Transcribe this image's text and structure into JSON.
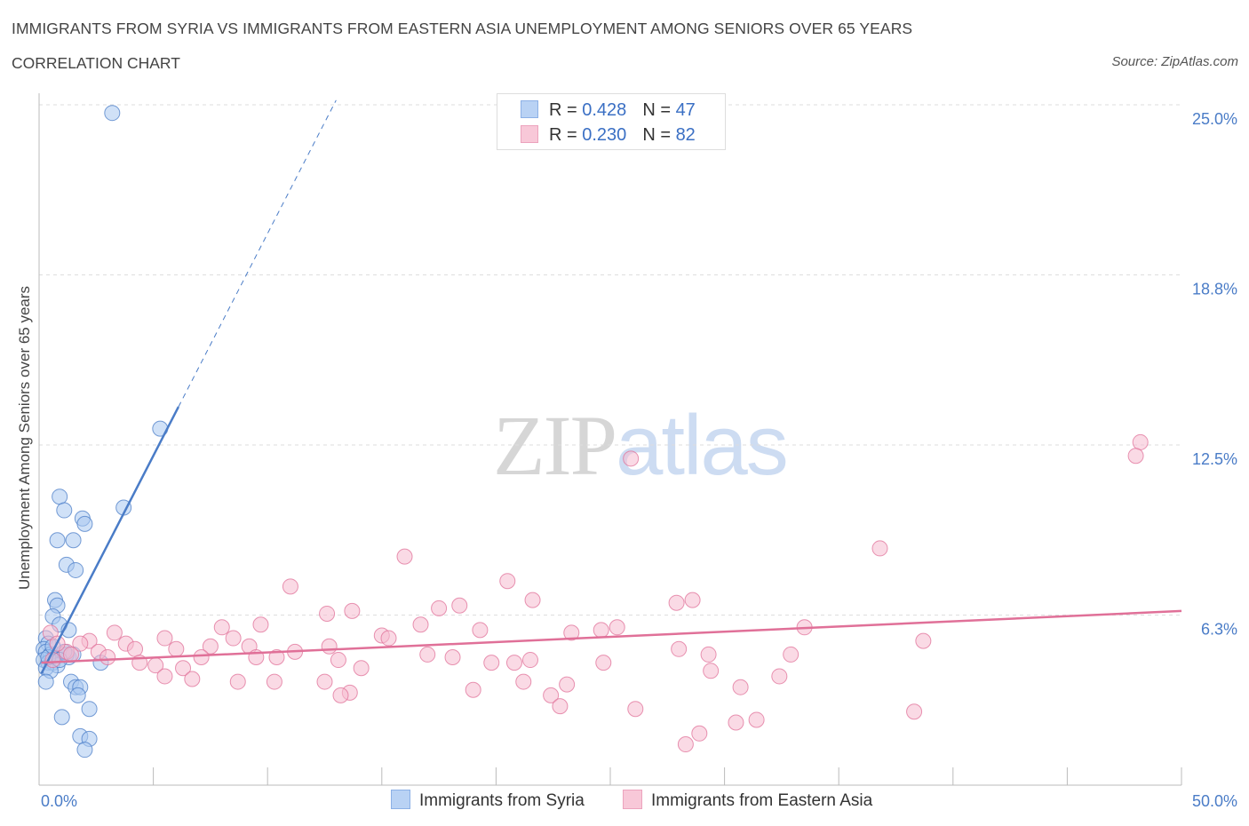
{
  "chart_data": {
    "type": "scatter",
    "title": "IMMIGRANTS FROM SYRIA VS IMMIGRANTS FROM EASTERN ASIA UNEMPLOYMENT AMONG SENIORS OVER 65 YEARS",
    "subtitle": "CORRELATION CHART",
    "source": "Source: ZipAtlas.com",
    "ylabel": "Unemployment Among Seniors over 65 years",
    "xlim": [
      0,
      50
    ],
    "ylim": [
      0,
      25
    ],
    "y_ticks": [
      {
        "value": 25.0,
        "label": "25.0%"
      },
      {
        "value": 18.75,
        "label": "18.8%"
      },
      {
        "value": 12.5,
        "label": "12.5%"
      },
      {
        "value": 6.25,
        "label": "6.3%"
      }
    ],
    "x_tick_labels": {
      "min": "0.0%",
      "max": "50.0%"
    },
    "grid": true,
    "colors": {
      "syria": "#4a7cc7",
      "syria_fill": "#aac8f0",
      "asia": "#e07098",
      "asia_fill": "#f5bcd0"
    },
    "legend": [
      {
        "key": "syria",
        "r_label": "R =",
        "r_value": "0.428",
        "n_label": "N =",
        "n_value": "47"
      },
      {
        "key": "asia",
        "r_label": "R =",
        "r_value": "0.230",
        "n_label": "N =",
        "n_value": "82"
      }
    ],
    "series": [
      {
        "name": "Immigrants from Syria",
        "key": "syria",
        "trend": {
          "x0": 0.1,
          "y0": 4.1,
          "x1": 6.1,
          "y1": 13.9,
          "dash_to_x": 13.0
        },
        "points": [
          [
            3.2,
            24.7
          ],
          [
            5.3,
            13.1
          ],
          [
            3.7,
            10.2
          ],
          [
            0.9,
            10.6
          ],
          [
            1.1,
            10.1
          ],
          [
            1.9,
            9.8
          ],
          [
            2.0,
            9.6
          ],
          [
            0.8,
            9.0
          ],
          [
            1.5,
            9.0
          ],
          [
            1.2,
            8.1
          ],
          [
            1.6,
            7.9
          ],
          [
            0.7,
            6.8
          ],
          [
            0.8,
            6.6
          ],
          [
            0.6,
            6.2
          ],
          [
            0.9,
            5.9
          ],
          [
            1.3,
            5.7
          ],
          [
            0.3,
            5.4
          ],
          [
            0.4,
            5.2
          ],
          [
            0.2,
            5.0
          ],
          [
            0.3,
            4.9
          ],
          [
            0.5,
            4.8
          ],
          [
            0.7,
            4.8
          ],
          [
            1.0,
            4.8
          ],
          [
            1.3,
            4.7
          ],
          [
            0.2,
            4.6
          ],
          [
            0.4,
            4.5
          ],
          [
            0.6,
            4.5
          ],
          [
            0.8,
            4.4
          ],
          [
            0.3,
            4.3
          ],
          [
            1.2,
            4.8
          ],
          [
            1.5,
            4.8
          ],
          [
            2.7,
            4.5
          ],
          [
            0.5,
            4.2
          ],
          [
            1.4,
            3.8
          ],
          [
            1.6,
            3.6
          ],
          [
            1.8,
            3.6
          ],
          [
            1.7,
            3.3
          ],
          [
            0.3,
            3.8
          ],
          [
            2.2,
            2.8
          ],
          [
            1.0,
            2.5
          ],
          [
            1.8,
            1.8
          ],
          [
            2.2,
            1.7
          ],
          [
            2.0,
            1.3
          ],
          [
            1.1,
            4.9
          ],
          [
            0.4,
            4.7
          ],
          [
            0.9,
            4.6
          ],
          [
            0.6,
            5.1
          ]
        ]
      },
      {
        "name": "Immigrants from Eastern Asia",
        "key": "asia",
        "trend": {
          "x0": 0.1,
          "y0": 4.5,
          "x1": 50.0,
          "y1": 6.4
        },
        "points": [
          [
            48.2,
            12.6
          ],
          [
            48.0,
            12.1
          ],
          [
            25.9,
            12.0
          ],
          [
            36.8,
            8.7
          ],
          [
            16.0,
            8.4
          ],
          [
            20.5,
            7.5
          ],
          [
            11.0,
            7.3
          ],
          [
            21.6,
            6.8
          ],
          [
            27.9,
            6.7
          ],
          [
            28.6,
            6.8
          ],
          [
            17.5,
            6.5
          ],
          [
            18.4,
            6.6
          ],
          [
            13.7,
            6.4
          ],
          [
            12.6,
            6.3
          ],
          [
            8.0,
            5.8
          ],
          [
            9.7,
            5.9
          ],
          [
            16.7,
            5.9
          ],
          [
            19.3,
            5.7
          ],
          [
            23.3,
            5.6
          ],
          [
            24.6,
            5.7
          ],
          [
            25.3,
            5.8
          ],
          [
            33.5,
            5.8
          ],
          [
            3.3,
            5.6
          ],
          [
            5.5,
            5.4
          ],
          [
            8.5,
            5.4
          ],
          [
            15.0,
            5.5
          ],
          [
            15.3,
            5.4
          ],
          [
            38.7,
            5.3
          ],
          [
            2.2,
            5.3
          ],
          [
            1.8,
            5.2
          ],
          [
            3.8,
            5.2
          ],
          [
            4.2,
            5.0
          ],
          [
            6.0,
            5.0
          ],
          [
            7.5,
            5.1
          ],
          [
            9.2,
            5.1
          ],
          [
            11.2,
            4.9
          ],
          [
            12.7,
            5.1
          ],
          [
            17.0,
            4.8
          ],
          [
            18.1,
            4.7
          ],
          [
            21.5,
            4.6
          ],
          [
            28.0,
            5.0
          ],
          [
            29.3,
            4.8
          ],
          [
            32.9,
            4.8
          ],
          [
            1.2,
            4.9
          ],
          [
            2.6,
            4.9
          ],
          [
            3.0,
            4.7
          ],
          [
            4.4,
            4.5
          ],
          [
            5.1,
            4.4
          ],
          [
            6.3,
            4.3
          ],
          [
            7.1,
            4.7
          ],
          [
            9.5,
            4.7
          ],
          [
            10.4,
            4.7
          ],
          [
            13.1,
            4.6
          ],
          [
            14.1,
            4.3
          ],
          [
            19.8,
            4.5
          ],
          [
            20.8,
            4.5
          ],
          [
            24.7,
            4.5
          ],
          [
            29.4,
            4.2
          ],
          [
            32.4,
            4.0
          ],
          [
            5.5,
            4.0
          ],
          [
            6.7,
            3.9
          ],
          [
            8.7,
            3.8
          ],
          [
            10.3,
            3.8
          ],
          [
            12.5,
            3.8
          ],
          [
            13.6,
            3.4
          ],
          [
            13.2,
            3.3
          ],
          [
            19.0,
            3.5
          ],
          [
            21.2,
            3.8
          ],
          [
            22.4,
            3.3
          ],
          [
            23.1,
            3.7
          ],
          [
            30.7,
            3.6
          ],
          [
            22.8,
            2.9
          ],
          [
            26.1,
            2.8
          ],
          [
            31.4,
            2.4
          ],
          [
            30.5,
            2.3
          ],
          [
            38.3,
            2.7
          ],
          [
            28.9,
            1.9
          ],
          [
            28.3,
            1.5
          ],
          [
            0.5,
            5.6
          ],
          [
            0.8,
            5.2
          ],
          [
            1.4,
            4.8
          ],
          [
            0.6,
            4.6
          ]
        ]
      }
    ]
  }
}
